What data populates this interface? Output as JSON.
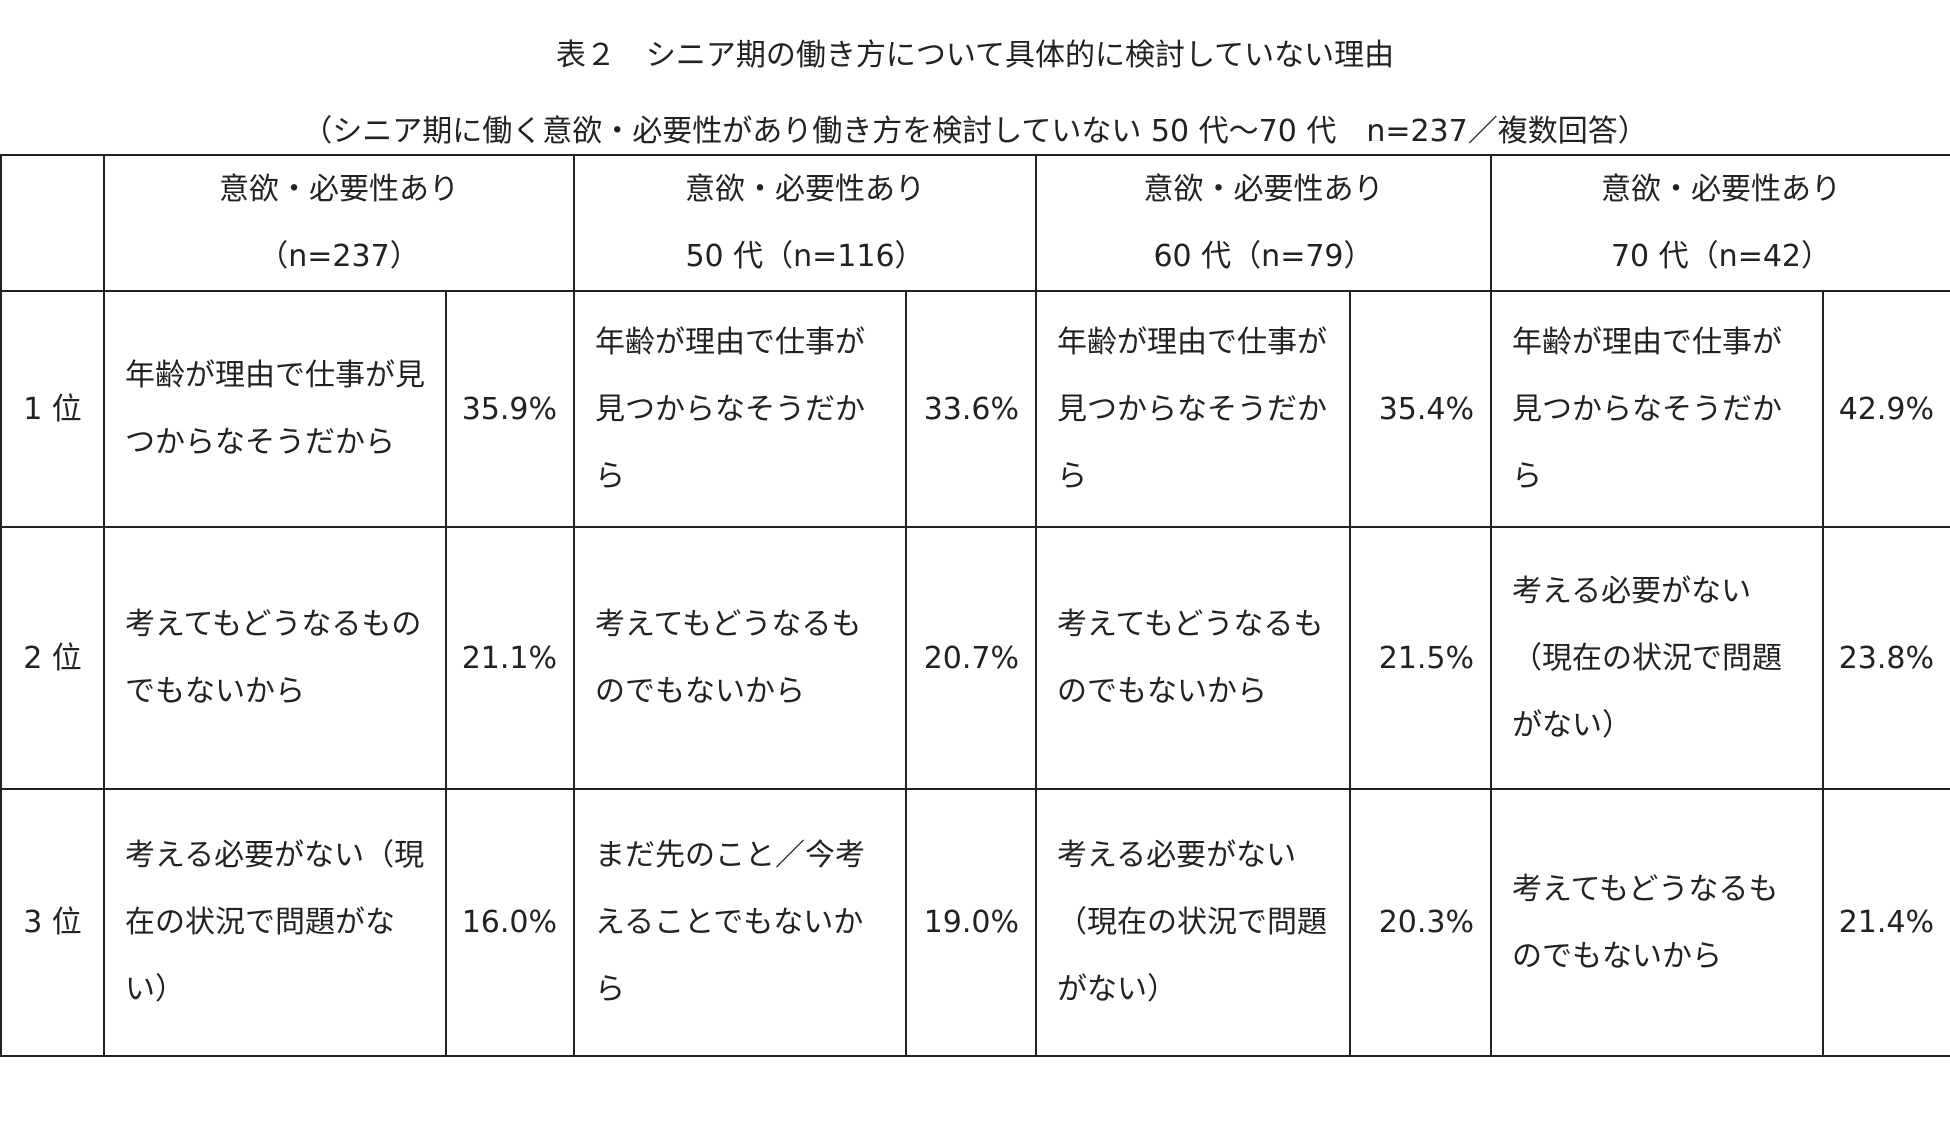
{
  "title": "表２　シニア期の働き方について具体的に検討していない理由",
  "subtitle": "（シニア期に働く意欲・必要性があり働き方を検討していない 50 代～70 代　n=237／複数回答）",
  "table": {
    "header": [
      {
        "line1": "意欲・必要性あり",
        "line2": "（n=237）"
      },
      {
        "line1": "意欲・必要性あり",
        "line2": "50 代（n=116）"
      },
      {
        "line1": "意欲・必要性あり",
        "line2": "60 代（n=79）"
      },
      {
        "line1": "意欲・必要性あり",
        "line2": "70 代（n=42）"
      }
    ],
    "rows": [
      {
        "rank": "1 位",
        "cells": [
          [
            "年齢が理由で仕事が見つからなそうだから",
            "35.9%"
          ],
          [
            "年齢が理由で仕事が見つからなそうだから",
            "33.6%"
          ],
          [
            "年齢が理由で仕事が見つからなそうだから",
            "35.4%"
          ],
          [
            "年齢が理由で仕事が見つからなそうだから",
            "42.9%"
          ]
        ]
      },
      {
        "rank": "2 位",
        "cells": [
          [
            "考えてもどうなるものでもないから",
            "21.1%"
          ],
          [
            "考えてもどうなるものでもないから",
            "20.7%"
          ],
          [
            "考えてもどうなるものでもないから",
            "21.5%"
          ],
          [
            "考える必要がない（現在の状況で問題がない）",
            "23.8%"
          ]
        ]
      },
      {
        "rank": "3 位",
        "cells": [
          [
            "考える必要がない（現在の状況で問題がない）",
            "16.0%"
          ],
          [
            "まだ先のこと／今考えることでもないから",
            "19.0%"
          ],
          [
            "考える必要がない（現在の状況で問題がない）",
            "20.3%"
          ],
          [
            "考えてもどうなるものでもないから",
            "21.4%"
          ]
        ]
      }
    ]
  }
}
